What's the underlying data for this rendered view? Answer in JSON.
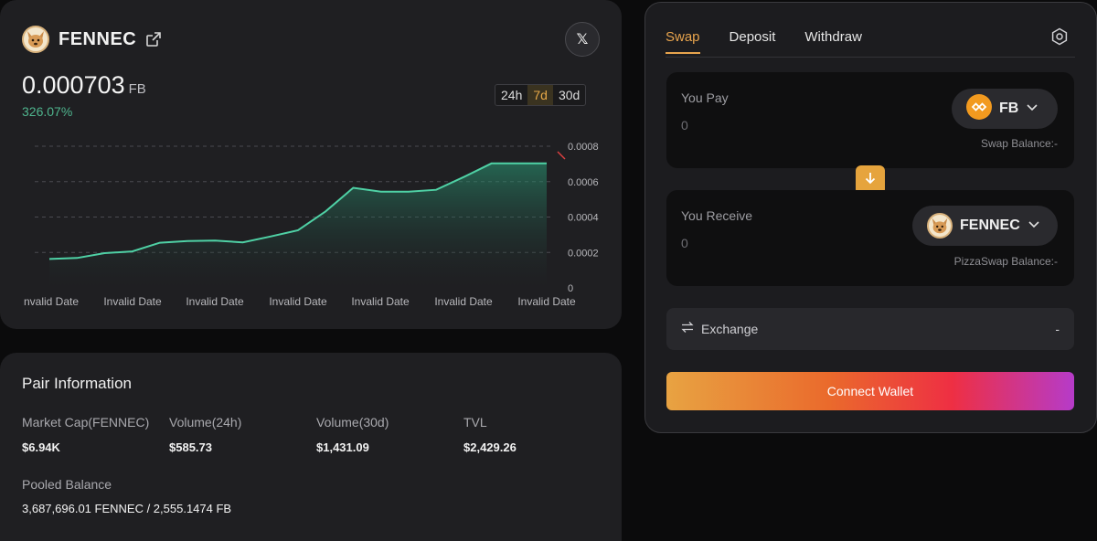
{
  "token": {
    "name": "FENNEC",
    "price": "0.000703",
    "price_unit": "FB",
    "change": "326.07%",
    "x_icon": "x-logo-icon",
    "external_icon": "external-link-icon"
  },
  "range_tabs": [
    {
      "label": "24h",
      "active": false
    },
    {
      "label": "7d",
      "active": true
    },
    {
      "label": "30d",
      "active": false
    }
  ],
  "chart_data": {
    "type": "area",
    "y_ticks": [
      "0.0008",
      "0.0006",
      "0.0004",
      "0.0002",
      "0"
    ],
    "x_tick_labels": [
      "nvalid Date",
      "Invalid Date",
      "Invalid Date",
      "Invalid Date",
      "Invalid Date",
      "Invalid Date",
      "Invalid Date"
    ],
    "ylim": [
      0,
      0.0008
    ],
    "values": [
      0.000163,
      0.000169,
      0.000196,
      0.000206,
      0.000255,
      0.000265,
      0.000267,
      0.000257,
      0.00029,
      0.000325,
      0.000432,
      0.000565,
      0.000543,
      0.000543,
      0.000554,
      0.000626,
      0.000703,
      0.000703,
      0.000703
    ],
    "line_color": "#4fd1a5",
    "grid": true
  },
  "pair": {
    "title": "Pair Information",
    "stats": [
      {
        "label": "Market Cap(FENNEC)",
        "value": "$6.94K"
      },
      {
        "label": "Volume(24h)",
        "value": "$585.73"
      },
      {
        "label": "Volume(30d)",
        "value": "$1,431.09"
      },
      {
        "label": "TVL",
        "value": "$2,429.26"
      }
    ],
    "pooled_label": "Pooled Balance",
    "pooled_value": "3,687,696.01 FENNEC / 2,555.1474 FB"
  },
  "swap": {
    "tabs": [
      {
        "label": "Swap",
        "active": true
      },
      {
        "label": "Deposit",
        "active": false
      },
      {
        "label": "Withdraw",
        "active": false
      }
    ],
    "pay": {
      "label": "You Pay",
      "placeholder": "0",
      "token": "FB",
      "balance": "Swap Balance:-"
    },
    "receive": {
      "label": "You Receive",
      "placeholder": "0",
      "token": "FENNEC",
      "balance": "PizzaSwap Balance:-"
    },
    "exchange_label": "Exchange",
    "exchange_value": "-",
    "connect_label": "Connect Wallet"
  },
  "colors": {
    "accent": "#e8a44d",
    "positive": "#4fb58e"
  }
}
